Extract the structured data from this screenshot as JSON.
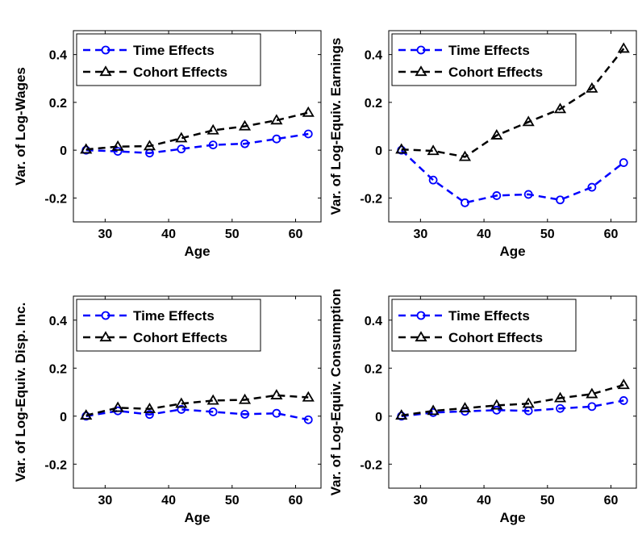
{
  "chart_data": [
    {
      "type": "line",
      "xlabel": "Age",
      "ylabel": "Var. of Log-Wages",
      "xlim": [
        25,
        64
      ],
      "ylim": [
        -0.3,
        0.5
      ],
      "xticks": [
        30,
        40,
        50,
        60
      ],
      "yticks": [
        -0.2,
        0,
        0.2,
        0.4
      ],
      "x": [
        27,
        32,
        37,
        42,
        47,
        52,
        57,
        62
      ],
      "legend_position": "top-left",
      "series": [
        {
          "name": "Time Effects",
          "marker": "circle",
          "color": "#0000ff",
          "values": [
            0.0,
            -0.005,
            -0.012,
            0.005,
            0.022,
            0.027,
            0.047,
            0.068
          ]
        },
        {
          "name": "Cohort Effects",
          "marker": "triangle",
          "color": "#000000",
          "values": [
            0.003,
            0.015,
            0.017,
            0.05,
            0.083,
            0.1,
            0.125,
            0.157
          ]
        }
      ]
    },
    {
      "type": "line",
      "xlabel": "Age",
      "ylabel": "Var. of Log-Equiv. Earnings",
      "xlim": [
        25,
        64
      ],
      "ylim": [
        -0.3,
        0.5
      ],
      "xticks": [
        30,
        40,
        50,
        60
      ],
      "yticks": [
        -0.2,
        0,
        0.2,
        0.4
      ],
      "x": [
        27,
        32,
        37,
        42,
        47,
        52,
        57,
        62
      ],
      "legend_position": "top-left",
      "series": [
        {
          "name": "Time Effects",
          "marker": "circle",
          "color": "#0000ff",
          "values": [
            0.0,
            -0.125,
            -0.22,
            -0.19,
            -0.185,
            -0.208,
            -0.155,
            -0.052
          ]
        },
        {
          "name": "Cohort Effects",
          "marker": "triangle",
          "color": "#000000",
          "values": [
            0.003,
            -0.003,
            -0.028,
            0.062,
            0.118,
            0.172,
            0.258,
            0.425
          ]
        }
      ]
    },
    {
      "type": "line",
      "xlabel": "Age",
      "ylabel": "Var. of Log-Equiv. Disp. Inc.",
      "xlim": [
        25,
        64
      ],
      "ylim": [
        -0.3,
        0.5
      ],
      "xticks": [
        30,
        40,
        50,
        60
      ],
      "yticks": [
        -0.2,
        0,
        0.2,
        0.4
      ],
      "x": [
        27,
        32,
        37,
        42,
        47,
        52,
        57,
        62
      ],
      "legend_position": "top-left",
      "series": [
        {
          "name": "Time Effects",
          "marker": "circle",
          "color": "#0000ff",
          "values": [
            0.0,
            0.022,
            0.007,
            0.028,
            0.018,
            0.008,
            0.012,
            -0.015
          ]
        },
        {
          "name": "Cohort Effects",
          "marker": "triangle",
          "color": "#000000",
          "values": [
            0.003,
            0.035,
            0.03,
            0.052,
            0.065,
            0.068,
            0.087,
            0.078
          ]
        }
      ]
    },
    {
      "type": "line",
      "xlabel": "Age",
      "ylabel": "Var. of Log-Equiv. Consumption",
      "xlim": [
        25,
        64
      ],
      "ylim": [
        -0.3,
        0.5
      ],
      "xticks": [
        30,
        40,
        50,
        60
      ],
      "yticks": [
        -0.2,
        0,
        0.2,
        0.4
      ],
      "x": [
        27,
        32,
        37,
        42,
        47,
        52,
        57,
        62
      ],
      "legend_position": "top-left",
      "series": [
        {
          "name": "Time Effects",
          "marker": "circle",
          "color": "#0000ff",
          "values": [
            0.0,
            0.015,
            0.02,
            0.025,
            0.022,
            0.032,
            0.04,
            0.065
          ]
        },
        {
          "name": "Cohort Effects",
          "marker": "triangle",
          "color": "#000000",
          "values": [
            0.003,
            0.022,
            0.033,
            0.045,
            0.052,
            0.075,
            0.092,
            0.13
          ]
        }
      ]
    }
  ]
}
